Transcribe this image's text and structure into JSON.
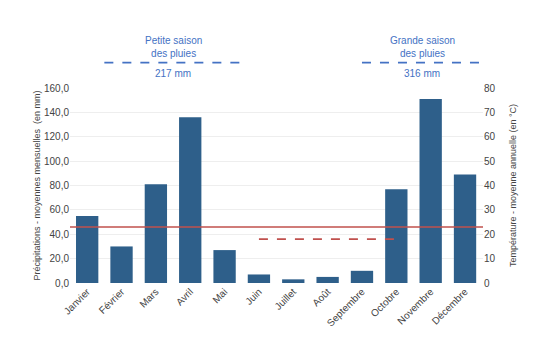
{
  "chart_data": {
    "type": "bar",
    "categories": [
      "Janvier",
      "Février",
      "Mars",
      "Avril",
      "Mai",
      "Juin",
      "Juillet",
      "Août",
      "Septembre",
      "Octobre",
      "Novembre",
      "Décembre"
    ],
    "values": [
      55,
      30,
      81,
      136,
      27,
      7,
      3,
      5,
      10,
      77,
      151,
      89
    ],
    "color": "#2E5F8A",
    "ylabel": "Précipitations - moyennes mensuelles  (en mm)",
    "ylim": [
      0,
      160
    ],
    "yticks": [
      {
        "value": 0,
        "label": "0,0"
      },
      {
        "value": 20,
        "label": "20,0"
      },
      {
        "value": 40,
        "label": "40,0"
      },
      {
        "value": 60,
        "label": "60,0"
      },
      {
        "value": 80,
        "label": "80,0"
      },
      {
        "value": 100,
        "label": "100,0"
      },
      {
        "value": 120,
        "label": "120,0"
      },
      {
        "value": 140,
        "label": "140,0"
      },
      {
        "value": 160,
        "label": "160,0"
      }
    ],
    "y2label": "Température - moyenne annuelle (en °C)",
    "y2lim": [
      0,
      80
    ],
    "y2ticks": [
      0,
      10,
      20,
      30,
      40,
      50,
      60,
      70,
      80
    ],
    "grid": true,
    "reference_lines": [
      {
        "y": 46,
        "color": "#C0504D",
        "line_style": "solid"
      },
      {
        "y": 36,
        "x_start": "Juin",
        "x_end": "Octobre",
        "color": "#C0504D",
        "line_style": "dashed"
      }
    ],
    "annotations": [
      {
        "text": "Petite saison\ndes pluies",
        "label": "217 mm",
        "span": [
          0.5,
          4.5
        ],
        "color": "#4472C4",
        "line_style": "dashed"
      },
      {
        "text": "Grande saison\ndes pluies",
        "label": "316 mm",
        "span": [
          8.0,
          11.5
        ],
        "color": "#4472C4",
        "line_style": "dashed"
      }
    ]
  }
}
